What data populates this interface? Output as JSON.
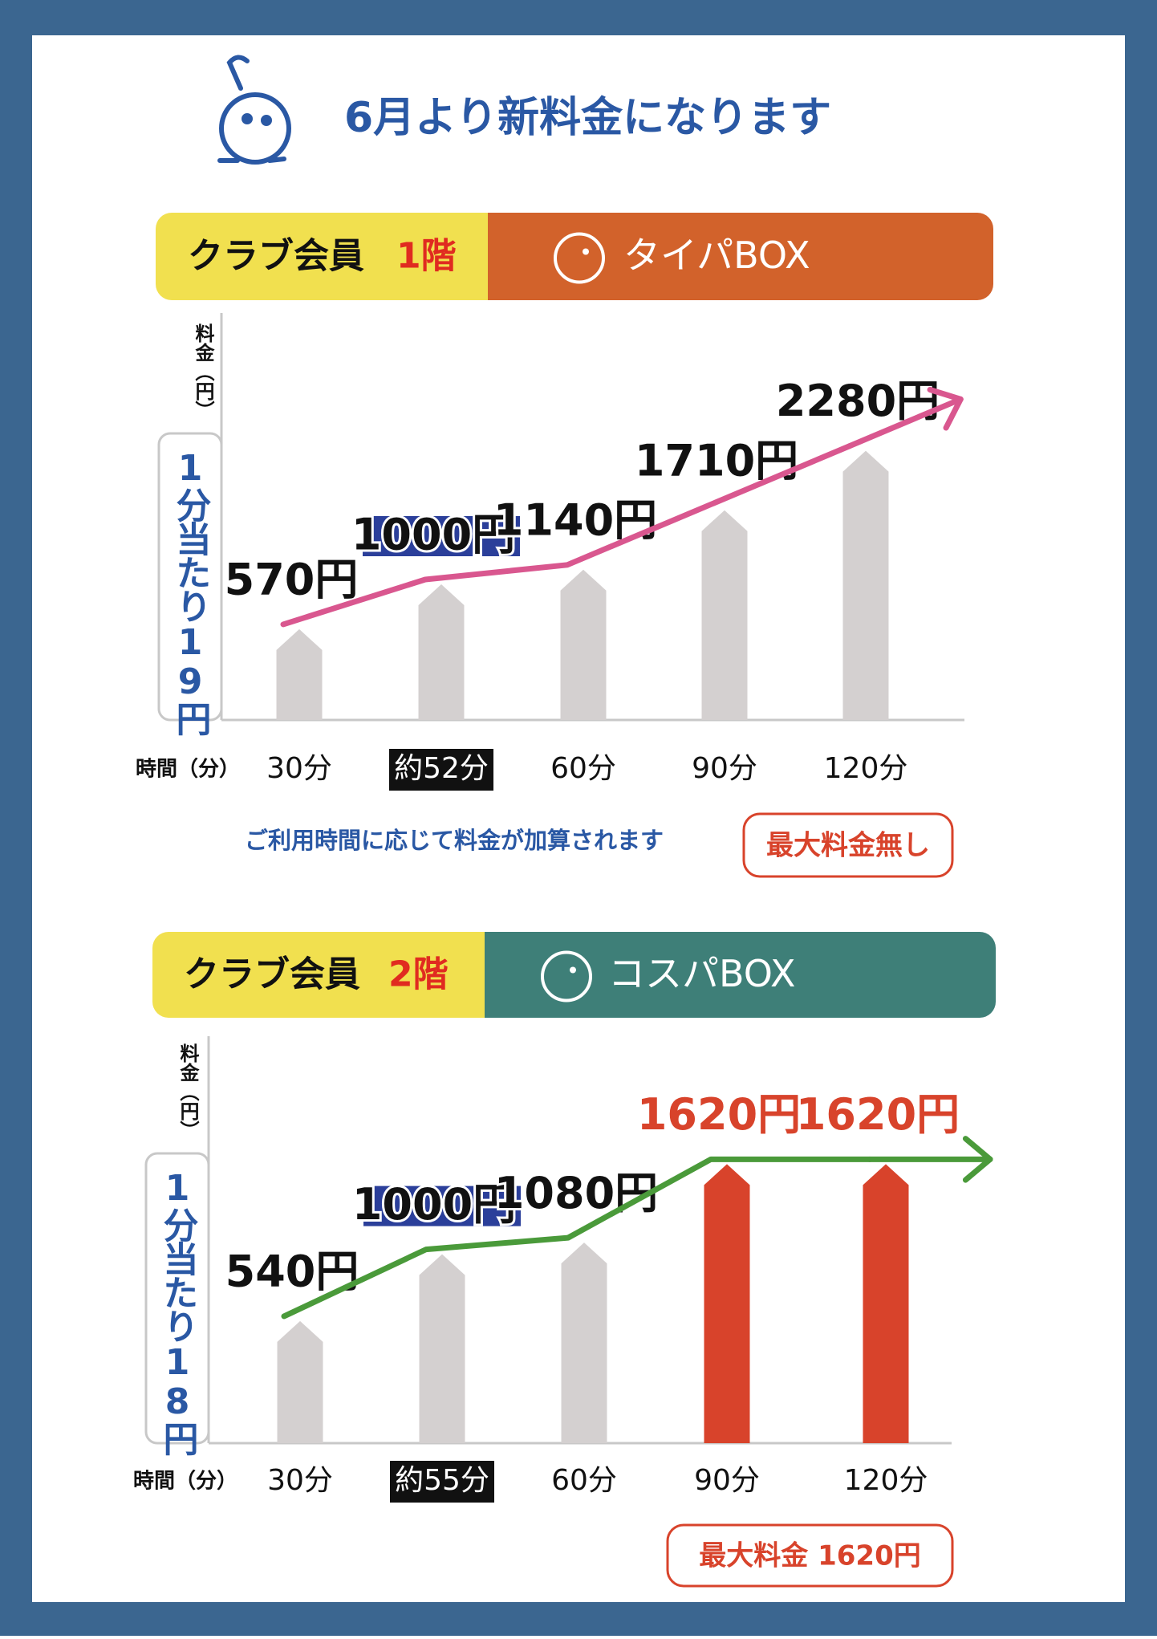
{
  "title": "6月より新料金になります",
  "chart_data": [
    {
      "type": "bar",
      "member": "クラブ会員",
      "floor": "1階",
      "box": "タイパBOX",
      "box_color": "#d2622b",
      "ylabel": "料金（円）",
      "note": "1分当たり19円",
      "xlabel": "時間（分）",
      "categories": [
        "30分",
        "約52分",
        "60分",
        "90分",
        "120分"
      ],
      "values": [
        570,
        1000,
        1140,
        1710,
        2280
      ],
      "value_labels": [
        "570円",
        "1000円",
        "1140円",
        "1710円",
        "2280円"
      ],
      "colors": [
        "#d4d0d0",
        "#d4d0d0",
        "#d4d0d0",
        "#d4d0d0",
        "#d4d0d0"
      ],
      "label_colors": [
        "#111111",
        "#111111",
        "#111111",
        "#111111",
        "#111111"
      ],
      "highlight": 1,
      "trend_color": "#d9578f",
      "ylim": [
        -300,
        3600
      ],
      "footnote": "ご利用時間に応じて料金が加算されます",
      "badge": "最大料金無し"
    },
    {
      "type": "bar",
      "member": "クラブ会員",
      "floor": "2階",
      "box": "コスパBOX",
      "box_color": "#3e7f78",
      "ylabel": "料金（円）",
      "note": "1分当たり18円",
      "xlabel": "時間（分）",
      "categories": [
        "30分",
        "約55分",
        "60分",
        "90分",
        "120分"
      ],
      "values": [
        540,
        1000,
        1080,
        1620,
        1620
      ],
      "value_labels": [
        "540円",
        "1000円",
        "1080円",
        "1620円",
        "1620円"
      ],
      "colors": [
        "#d4d0d0",
        "#d4d0d0",
        "#d4d0d0",
        "#d8432b",
        "#d8432b"
      ],
      "label_colors": [
        "#111111",
        "#111111",
        "#111111",
        "#d8432b",
        "#d8432b"
      ],
      "highlight": 1,
      "trend_color": "#4a9a3a",
      "ylim": [
        -300,
        2500
      ],
      "badge": "最大料金 1620円"
    }
  ]
}
